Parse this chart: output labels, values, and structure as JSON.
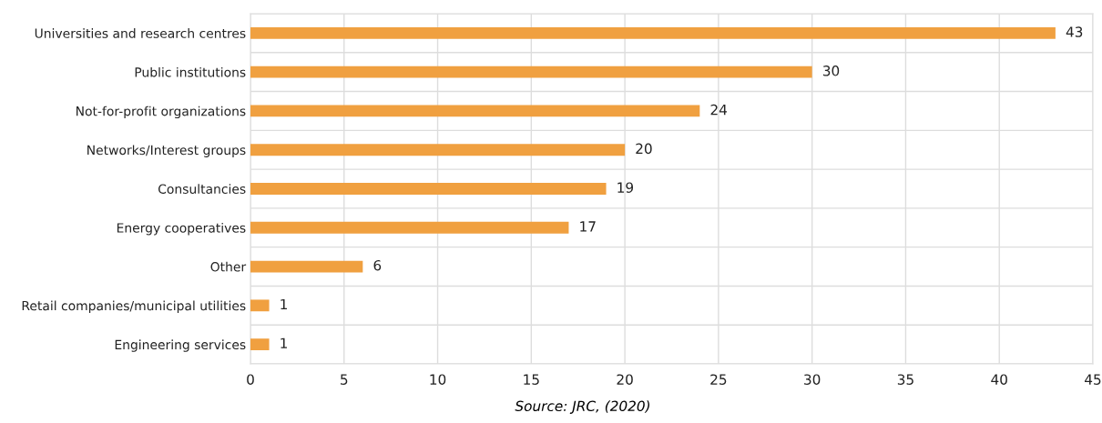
{
  "chart_data": {
    "type": "bar",
    "orientation": "horizontal",
    "categories": [
      "Universities and research centres",
      "Public institutions",
      "Not-for-profit organizations",
      "Networks/Interest groups",
      "Consultancies",
      "Energy cooperatives",
      "Other",
      "Retail companies/municipal utilities",
      "Engineering services"
    ],
    "values": [
      43,
      30,
      24,
      20,
      19,
      17,
      6,
      1,
      1
    ],
    "color": "#f0a040",
    "xlim": [
      0,
      45
    ],
    "xticks": [
      0,
      5,
      10,
      15,
      20,
      25,
      30,
      35,
      40,
      45
    ],
    "grid": true,
    "data_labels": true,
    "annotations": [
      "Source: JRC, (2020)"
    ]
  }
}
